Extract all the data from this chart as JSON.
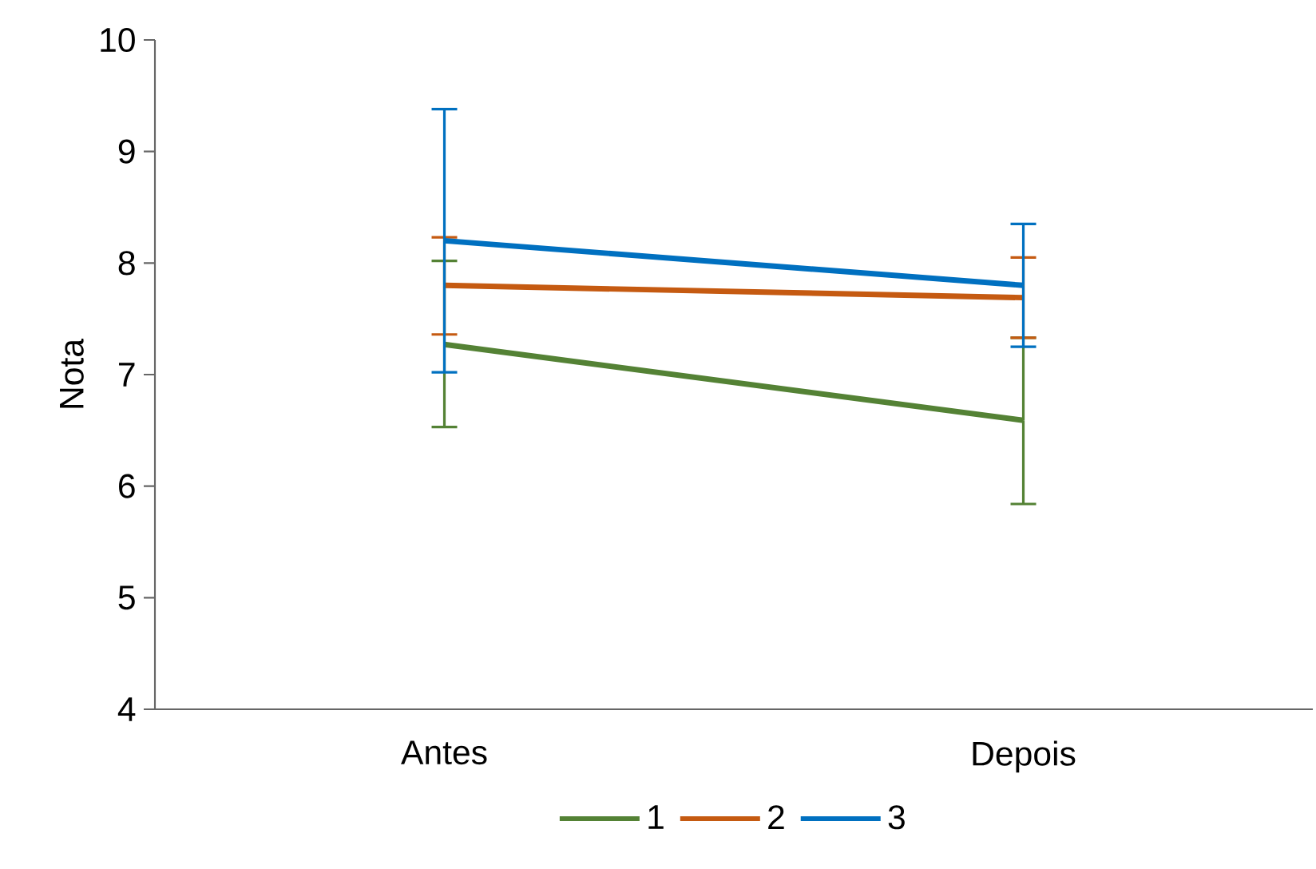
{
  "chart_data": {
    "type": "line",
    "ylabel": "Nota",
    "categories": [
      "Antes",
      "Depois"
    ],
    "ylim": [
      4,
      10
    ],
    "yticks": [
      4,
      5,
      6,
      7,
      8,
      9,
      10
    ],
    "legend": "bottom",
    "marker": "none",
    "grid": false,
    "line_style": "solid",
    "series": [
      {
        "name": "1",
        "color": "#548235",
        "values": [
          7.27,
          6.59
        ],
        "errors": [
          [
            6.53,
            8.02
          ],
          [
            5.84,
            7.33
          ]
        ]
      },
      {
        "name": "2",
        "color": "#c55a11",
        "values": [
          7.8,
          7.69
        ],
        "errors": [
          [
            7.36,
            8.23
          ],
          [
            7.33,
            8.05
          ]
        ]
      },
      {
        "name": "3",
        "color": "#0070c0",
        "values": [
          8.2,
          7.8
        ],
        "errors": [
          [
            7.02,
            9.38
          ],
          [
            7.25,
            8.35
          ]
        ]
      }
    ]
  }
}
